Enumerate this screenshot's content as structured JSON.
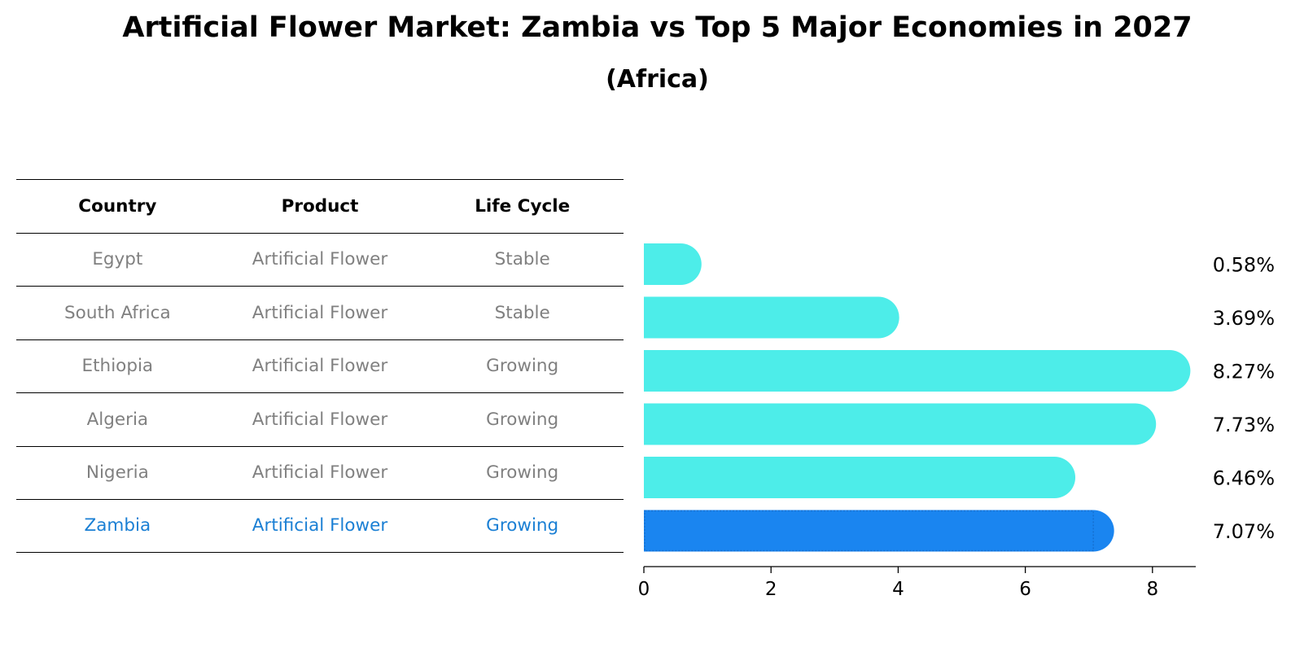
{
  "title": "Artificial Flower Market: Zambia vs Top 5 Major Economies in 2027",
  "subtitle": "(Africa)",
  "table": {
    "headers": [
      "Country",
      "Product",
      "Life Cycle"
    ],
    "rows": [
      [
        "Egypt",
        "Artificial Flower",
        "Stable"
      ],
      [
        "South Africa",
        "Artificial Flower",
        "Stable"
      ],
      [
        "Ethiopia",
        "Artificial Flower",
        "Growing"
      ],
      [
        "Algeria",
        "Artificial Flower",
        "Growing"
      ],
      [
        "Nigeria",
        "Artificial Flower",
        "Growing"
      ],
      [
        "Zambia",
        "Artificial Flower",
        "Growing"
      ]
    ],
    "highlight_row": 5
  },
  "colors": {
    "bar": "#4dede9",
    "highlight_bar": "#1a85f0",
    "highlight_text": "#1a7fd4",
    "muted_text": "#808080"
  },
  "chart_data": {
    "type": "bar",
    "orientation": "horizontal",
    "categories": [
      "Egypt",
      "South Africa",
      "Ethiopia",
      "Algeria",
      "Nigeria",
      "Zambia"
    ],
    "values": [
      0.58,
      3.69,
      8.27,
      7.73,
      6.46,
      7.07
    ],
    "value_labels": [
      "0.58%",
      "3.69%",
      "8.27%",
      "7.73%",
      "6.46%",
      "7.07%"
    ],
    "highlight": "Zambia",
    "xticks": [
      0,
      2,
      4,
      6,
      8
    ],
    "xlim": [
      0,
      8.7
    ],
    "xlabel": "",
    "ylabel": ""
  }
}
